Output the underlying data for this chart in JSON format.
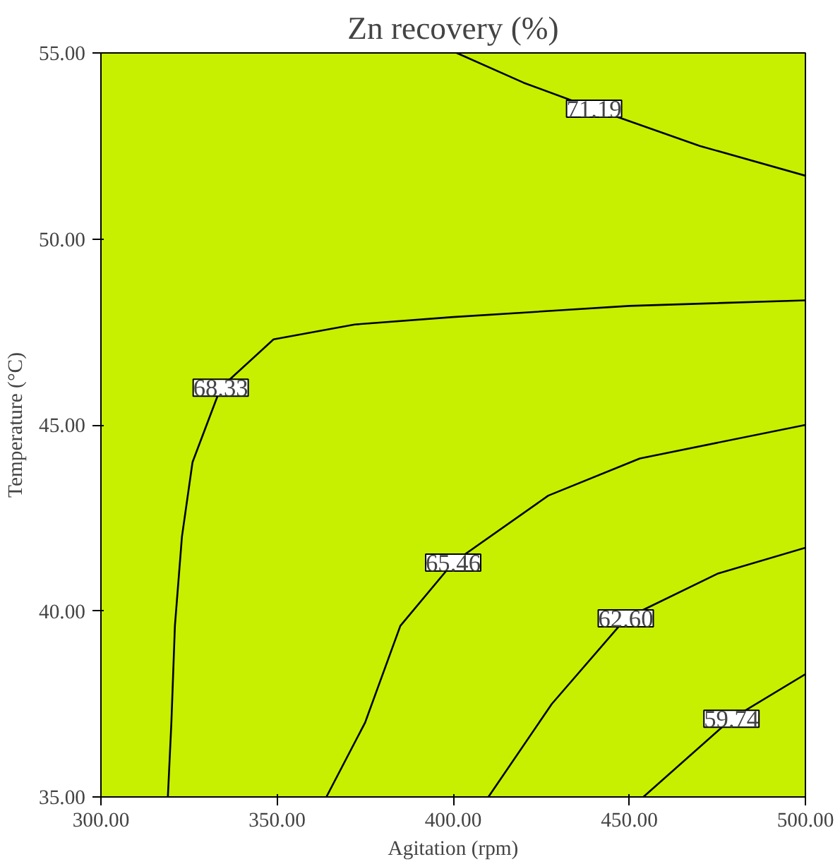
{
  "chart_data": {
    "type": "line",
    "title": "Zn recovery (%)",
    "xlabel": "Agitation (rpm)",
    "ylabel": "Temperature (°C)",
    "xlim": [
      300,
      500
    ],
    "ylim": [
      35,
      55
    ],
    "xticks": [
      {
        "value": 300,
        "label": "300.00"
      },
      {
        "value": 350,
        "label": "350.00"
      },
      {
        "value": 400,
        "label": "400.00"
      },
      {
        "value": 450,
        "label": "450.00"
      },
      {
        "value": 500,
        "label": "500.00"
      }
    ],
    "yticks": [
      {
        "value": 35,
        "label": "35.00"
      },
      {
        "value": 40,
        "label": "40.00"
      },
      {
        "value": 45,
        "label": "45.00"
      },
      {
        "value": 50,
        "label": "50.00"
      },
      {
        "value": 55,
        "label": "55.00"
      }
    ],
    "grid": false,
    "legend": false,
    "marker": "none",
    "line_style": "solid",
    "series": [
      {
        "name": "71.19",
        "color": "#000000",
        "x": [
          401,
          420,
          440,
          470,
          500
        ],
        "values": [
          55,
          54.2,
          53.5,
          52.5,
          51.7
        ]
      },
      {
        "name": "68.33",
        "color": "#000000",
        "x": [
          319,
          320,
          321,
          323,
          326,
          334,
          349,
          372,
          400,
          450,
          500
        ],
        "values": [
          35,
          37,
          39.6,
          42,
          44,
          46,
          47.3,
          47.7,
          47.9,
          48.2,
          48.35
        ]
      },
      {
        "name": "65.46",
        "color": "#000000",
        "x": [
          364,
          375,
          385,
          400,
          427,
          453,
          500
        ],
        "values": [
          35,
          37,
          39.6,
          41.3,
          43.1,
          44.1,
          45.0
        ]
      },
      {
        "name": "62.60",
        "color": "#000000",
        "x": [
          410,
          428,
          449,
          475,
          500
        ],
        "values": [
          35,
          37.5,
          39.8,
          41,
          41.7
        ]
      },
      {
        "name": "59.74",
        "color": "#000000",
        "x": [
          454,
          479,
          500
        ],
        "values": [
          35,
          37.1,
          38.3
        ]
      }
    ]
  }
}
